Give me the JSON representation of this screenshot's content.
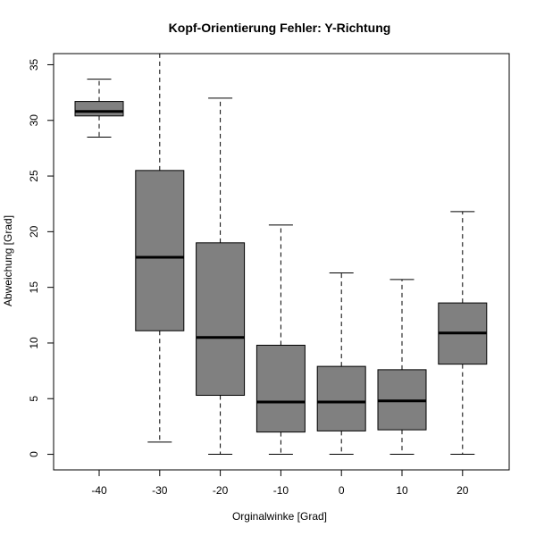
{
  "chart_data": {
    "type": "boxplot",
    "title": "Kopf-Orientierung Fehler: Y-Richtung",
    "xlabel": "Orginalwinke [Grad]",
    "ylabel": "Abweichung [Grad]",
    "ylim": [
      -1.4,
      36
    ],
    "yticks": [
      0,
      5,
      10,
      15,
      20,
      25,
      30,
      35
    ],
    "categories": [
      "-40",
      "-30",
      "-20",
      "-10",
      "0",
      "10",
      "20"
    ],
    "boxes": [
      {
        "whisker_low": 28.5,
        "q1": 30.4,
        "median": 30.8,
        "q3": 31.7,
        "whisker_high": 33.7
      },
      {
        "whisker_low": 1.1,
        "q1": 11.1,
        "median": 17.7,
        "q3": 25.5,
        "whisker_high": 36.0
      },
      {
        "whisker_low": 0.0,
        "q1": 5.3,
        "median": 10.5,
        "q3": 19.0,
        "whisker_high": 32.0
      },
      {
        "whisker_low": 0.0,
        "q1": 2.0,
        "median": 4.7,
        "q3": 9.8,
        "whisker_high": 20.6
      },
      {
        "whisker_low": 0.0,
        "q1": 2.1,
        "median": 4.7,
        "q3": 7.9,
        "whisker_high": 16.3
      },
      {
        "whisker_low": 0.0,
        "q1": 2.2,
        "median": 4.8,
        "q3": 7.6,
        "whisker_high": 15.7
      },
      {
        "whisker_low": 0.0,
        "q1": 8.1,
        "median": 10.9,
        "q3": 13.6,
        "whisker_high": 21.8
      }
    ],
    "box_color": "#808080",
    "line_color": "#000000",
    "grid": false
  }
}
